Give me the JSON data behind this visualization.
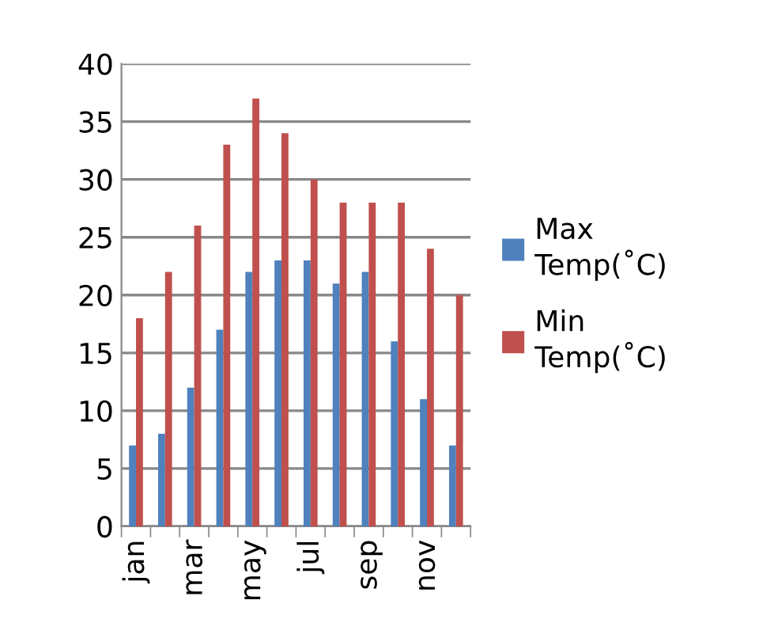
{
  "chart_data": {
    "type": "bar",
    "categories": [
      "jan",
      null,
      "mar",
      null,
      "may",
      null,
      "jul",
      null,
      "sep",
      null,
      "nov",
      null
    ],
    "series": [
      {
        "name": "Max Temp(˚C)",
        "color": "#4f81bd",
        "values": [
          7,
          8,
          12,
          17,
          22,
          23,
          23,
          21,
          22,
          16,
          11,
          7
        ]
      },
      {
        "name": "Min Temp(˚C)",
        "color": "#c0504d",
        "values": [
          18,
          22,
          26,
          33,
          37,
          34,
          30,
          28,
          28,
          28,
          24,
          20
        ]
      }
    ],
    "ylim": [
      0,
      40
    ],
    "yticks": [
      0,
      5,
      10,
      15,
      20,
      25,
      30,
      35,
      40
    ],
    "grid": "y",
    "legend": "right"
  }
}
